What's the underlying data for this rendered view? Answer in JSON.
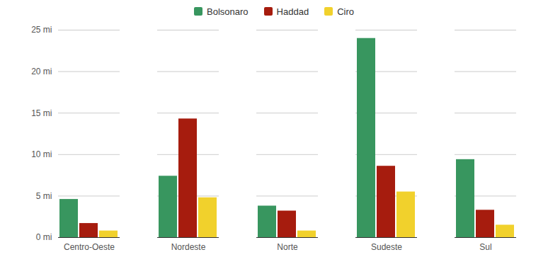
{
  "chart_data": {
    "type": "bar",
    "categories": [
      "Centro-Oeste",
      "Nordeste",
      "Norte",
      "Sudeste",
      "Sul"
    ],
    "series": [
      {
        "name": "Bolsonaro",
        "color": "#38965f",
        "values": [
          4.6,
          7.4,
          3.8,
          24.0,
          9.4
        ]
      },
      {
        "name": "Haddad",
        "color": "#a61c0e",
        "values": [
          1.7,
          14.3,
          3.2,
          8.6,
          3.3
        ]
      },
      {
        "name": "Ciro",
        "color": "#f1d12c",
        "values": [
          0.8,
          4.8,
          0.8,
          5.5,
          1.5
        ]
      }
    ],
    "ylim": [
      0,
      25
    ],
    "yticks": [
      {
        "value": 0,
        "label": "0 mi"
      },
      {
        "value": 5,
        "label": "5 mi"
      },
      {
        "value": 10,
        "label": "10 mi"
      },
      {
        "value": 15,
        "label": "15 mi"
      },
      {
        "value": 20,
        "label": "20 mi"
      },
      {
        "value": 25,
        "label": "25 mi"
      }
    ],
    "grid": true,
    "legend": "top"
  }
}
